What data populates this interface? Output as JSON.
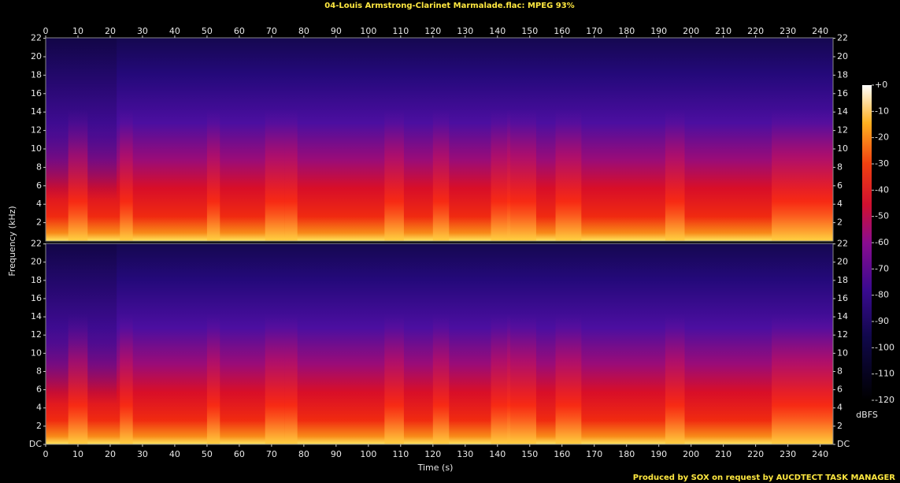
{
  "chart_data": {
    "type": "spectrogram",
    "title": "04-Louis Armstrong-Clarinet Marmalade.flac: MPEG 93%",
    "xlabel": "Time (s)",
    "ylabel": "Frequency (kHz)",
    "xlim": [
      0,
      244
    ],
    "xticks": [
      0,
      10,
      20,
      30,
      40,
      50,
      60,
      70,
      80,
      90,
      100,
      110,
      120,
      130,
      140,
      150,
      160,
      170,
      180,
      190,
      200,
      210,
      220,
      230,
      240
    ],
    "ylim": [
      0,
      22.05
    ],
    "yticks": [
      {
        "value": 0,
        "label": "DC"
      },
      2,
      4,
      6,
      8,
      10,
      12,
      14,
      16,
      18,
      20,
      22
    ],
    "colorbar": {
      "label": "dBFS",
      "lim": [
        -120,
        0
      ],
      "ticks": [
        {
          "value": 0,
          "label": "+0"
        },
        -10,
        -20,
        -30,
        -40,
        -50,
        -60,
        -70,
        -80,
        -90,
        -100,
        -110,
        -120
      ]
    },
    "footer": "Produced by SOX on request by AUCDTECT TASK MANAGER"
  }
}
